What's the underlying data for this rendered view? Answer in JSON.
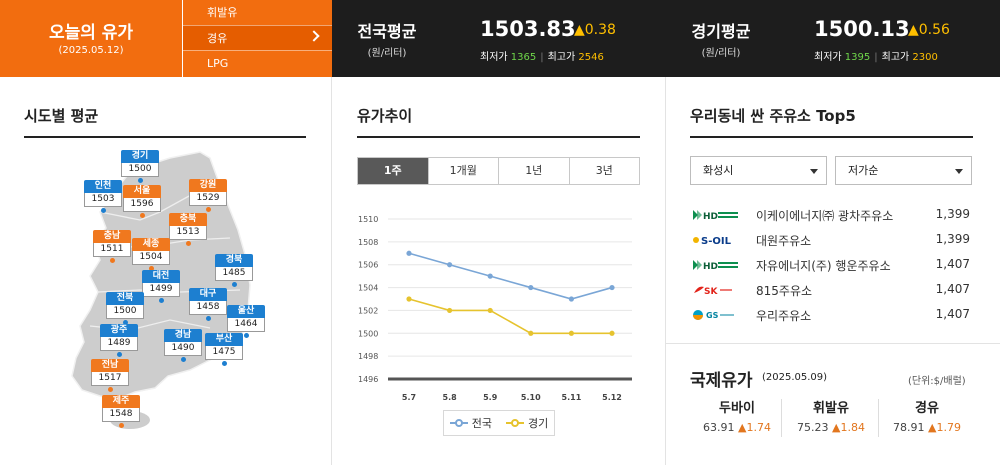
{
  "today": {
    "title": "오늘의 유가",
    "date": "(2025.05.12)"
  },
  "fuel_menu": [
    {
      "label": "휘발유",
      "active": false
    },
    {
      "label": "경유",
      "active": true
    },
    {
      "label": "LPG",
      "active": false
    }
  ],
  "national": {
    "label": "전국평균",
    "unit": "(원/리터)",
    "price": "1503.83",
    "change": "▲0.38",
    "low_label": "최저가",
    "low": "1365",
    "high_label": "최고가",
    "high": "2546"
  },
  "gyeonggi": {
    "label": "경기평균",
    "unit": "(원/리터)",
    "price": "1500.13",
    "change": "▲0.56",
    "low_label": "최저가",
    "low": "1395",
    "high_label": "최고가",
    "high": "2300"
  },
  "regional": {
    "title": "시도별 평균",
    "regions": [
      {
        "name": "경기",
        "value": "1500",
        "color": "blue"
      },
      {
        "name": "인천",
        "value": "1503",
        "color": "blue"
      },
      {
        "name": "서울",
        "value": "1596",
        "color": "orange"
      },
      {
        "name": "강원",
        "value": "1529",
        "color": "orange"
      },
      {
        "name": "충북",
        "value": "1513",
        "color": "orange"
      },
      {
        "name": "충남",
        "value": "1511",
        "color": "orange"
      },
      {
        "name": "세종",
        "value": "1504",
        "color": "orange"
      },
      {
        "name": "경북",
        "value": "1485",
        "color": "blue"
      },
      {
        "name": "대전",
        "value": "1499",
        "color": "blue"
      },
      {
        "name": "전북",
        "value": "1500",
        "color": "blue"
      },
      {
        "name": "대구",
        "value": "1458",
        "color": "blue"
      },
      {
        "name": "울산",
        "value": "1464",
        "color": "blue"
      },
      {
        "name": "광주",
        "value": "1489",
        "color": "blue"
      },
      {
        "name": "경남",
        "value": "1490",
        "color": "blue"
      },
      {
        "name": "부산",
        "value": "1475",
        "color": "blue"
      },
      {
        "name": "전남",
        "value": "1517",
        "color": "orange"
      },
      {
        "name": "제주",
        "value": "1548",
        "color": "orange"
      }
    ]
  },
  "trend": {
    "title": "유가추이",
    "tabs": [
      {
        "label": "1주",
        "active": true
      },
      {
        "label": "1개월",
        "active": false
      },
      {
        "label": "1년",
        "active": false
      },
      {
        "label": "3년",
        "active": false
      }
    ]
  },
  "chart_data": {
    "type": "line",
    "x": [
      "5.7",
      "5.8",
      "5.9",
      "5.10",
      "5.11",
      "5.12"
    ],
    "series": [
      {
        "name": "전국",
        "values": [
          1507,
          1506,
          1505,
          1504,
          1503,
          1504
        ],
        "color": "#7aa6d6"
      },
      {
        "name": "경기",
        "values": [
          1503,
          1502,
          1502,
          1500,
          1500,
          1500
        ],
        "color": "#e6c32e"
      }
    ],
    "yticks": [
      1496,
      1498,
      1500,
      1502,
      1504,
      1506,
      1508,
      1510
    ],
    "ylim": [
      1496,
      1510
    ],
    "grid": true,
    "legend": "bottom"
  },
  "top5": {
    "title": "우리동네 싼 주유소 Top5",
    "region_select": "화성시",
    "sort_select": "저가순",
    "stations": [
      {
        "brand": "HD 현대오일뱅크",
        "logo": "hd-oilbank-icon",
        "name": "이케이에너지㈜ 광차주유소",
        "price": "1,399"
      },
      {
        "brand": "S-OIL",
        "logo": "s-oil-icon",
        "name": "대원주유소",
        "price": "1,399"
      },
      {
        "brand": "HD 현대오일뱅크",
        "logo": "hd-oilbank-icon",
        "name": "자유에너지(주) 행운주유소",
        "price": "1,407"
      },
      {
        "brand": "SK 에너지",
        "logo": "sk-energy-icon",
        "name": "815주유소",
        "price": "1,407"
      },
      {
        "brand": "GS 칼텍스",
        "logo": "gs-caltex-icon",
        "name": "우리주유소",
        "price": "1,407"
      }
    ]
  },
  "international": {
    "title": "국제유가",
    "date": "(2025.05.09)",
    "unit": "(단위:$/배럴)",
    "items": [
      {
        "name": "두바이",
        "price": "63.91",
        "change": "▲1.74"
      },
      {
        "name": "휘발유",
        "price": "75.23",
        "change": "▲1.84"
      },
      {
        "name": "경유",
        "price": "78.91",
        "change": "▲1.79"
      }
    ]
  }
}
